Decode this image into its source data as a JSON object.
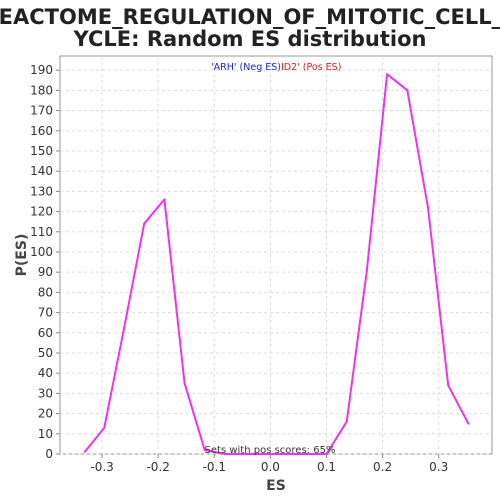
{
  "chart_data": {
    "type": "line",
    "title_lines": [
      "REACTOME_REGULATION_OF_MITOTIC_CELL_C",
      "YCLE: Random ES distribution"
    ],
    "xlabel": "ES",
    "ylabel": "P(ES)",
    "xlim": [
      -0.375,
      0.395
    ],
    "ylim": [
      0,
      197
    ],
    "x_ticks": [
      -0.3,
      -0.2,
      -0.1,
      0.0,
      0.1,
      0.2,
      0.3
    ],
    "x_tick_labels": [
      "-0.3",
      "-0.2",
      "-0.1",
      "0.0",
      "0.1",
      "0.2",
      "0.3"
    ],
    "y_ticks": [
      0,
      10,
      20,
      30,
      40,
      50,
      60,
      70,
      80,
      90,
      100,
      110,
      120,
      130,
      140,
      150,
      160,
      170,
      180,
      190
    ],
    "y_tick_labels": [
      "0",
      "10",
      "20",
      "30",
      "40",
      "50",
      "60",
      "70",
      "80",
      "90",
      "100",
      "110",
      "120",
      "130",
      "140",
      "150",
      "160",
      "170",
      "180",
      "190"
    ],
    "grid": true,
    "legend": {
      "placement": "top-center",
      "neg_label": "'ARH' (Neg ES)",
      "neg_color": "#2222dd",
      "pos_label": "ID2' (Pos ES)",
      "pos_color": "#dd2222"
    },
    "annotation": "Sets with pos scores: 65%",
    "series": [
      {
        "color": "#ee33ee",
        "x": [
          -0.331,
          -0.296,
          -0.261,
          -0.225,
          -0.189,
          -0.153,
          -0.117,
          -0.081,
          -0.045,
          -0.009,
          0.027,
          0.063,
          0.1,
          0.136,
          0.172,
          0.208,
          0.244,
          0.281,
          0.317,
          0.353
        ],
        "y": [
          1,
          13,
          62,
          114,
          126,
          35,
          2,
          0,
          0,
          0,
          0,
          0,
          0,
          16,
          91,
          188,
          180,
          122,
          34,
          15
        ]
      }
    ]
  }
}
